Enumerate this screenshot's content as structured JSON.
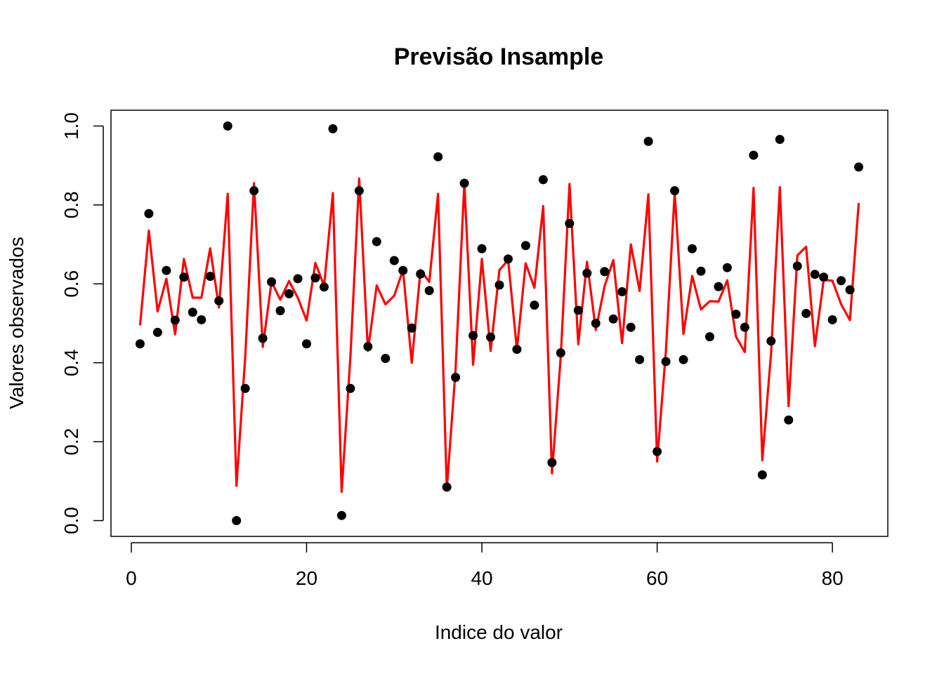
{
  "chart_data": {
    "type": "scatter",
    "title": "Previsão Insample",
    "xlabel": "Indice do valor",
    "ylabel": "Valores observados",
    "xlim": [
      -2.32,
      86.32
    ],
    "ylim": [
      -0.04,
      1.04
    ],
    "xticks": [
      0,
      20,
      40,
      60,
      80
    ],
    "xtick_labels": [
      "0",
      "20",
      "40",
      "60",
      "80"
    ],
    "yticks": [
      0,
      0.2,
      0.4,
      0.6,
      0.8,
      1.0
    ],
    "ytick_labels": [
      "0.0",
      "0.2",
      "0.4",
      "0.6",
      "0.8",
      "1.0"
    ],
    "grid": false,
    "x": [
      1,
      2,
      3,
      4,
      5,
      6,
      7,
      8,
      9,
      10,
      11,
      12,
      13,
      14,
      15,
      16,
      17,
      18,
      19,
      20,
      21,
      22,
      23,
      24,
      25,
      26,
      27,
      28,
      29,
      30,
      31,
      32,
      33,
      34,
      35,
      36,
      37,
      38,
      39,
      40,
      41,
      42,
      43,
      44,
      45,
      46,
      47,
      48,
      49,
      50,
      51,
      52,
      53,
      54,
      55,
      56,
      57,
      58,
      59,
      60,
      61,
      62,
      63,
      64,
      65,
      66,
      67,
      68,
      69,
      70,
      71,
      72,
      73,
      74,
      75,
      76,
      77,
      78,
      79,
      80,
      81,
      82,
      83
    ],
    "series": [
      {
        "type": "scatter",
        "color": "#000000",
        "values": [
          0.448,
          0.778,
          0.477,
          0.634,
          0.508,
          0.617,
          0.528,
          0.509,
          0.619,
          0.557,
          1.0,
          0.0,
          0.335,
          0.836,
          0.462,
          0.605,
          0.532,
          0.575,
          0.613,
          0.448,
          0.615,
          0.592,
          0.993,
          0.013,
          0.335,
          0.836,
          0.441,
          0.707,
          0.411,
          0.659,
          0.634,
          0.488,
          0.625,
          0.583,
          0.922,
          0.085,
          0.363,
          0.855,
          0.469,
          0.689,
          0.465,
          0.597,
          0.663,
          0.434,
          0.697,
          0.546,
          0.864,
          0.147,
          0.425,
          0.753,
          0.533,
          0.627,
          0.5,
          0.631,
          0.511,
          0.58,
          0.49,
          0.408,
          0.961,
          0.175,
          0.403,
          0.836,
          0.408,
          0.689,
          0.632,
          0.466,
          0.593,
          0.641,
          0.523,
          0.49,
          0.926,
          0.116,
          0.455,
          0.966,
          0.255,
          0.645,
          0.525,
          0.624,
          0.617,
          0.509,
          0.608,
          0.585,
          0.896
        ]
      },
      {
        "type": "line",
        "color": "#ff0000",
        "values": [
          0.495,
          0.735,
          0.53,
          0.613,
          0.472,
          0.663,
          0.565,
          0.565,
          0.69,
          0.54,
          0.828,
          0.088,
          0.415,
          0.855,
          0.44,
          0.605,
          0.56,
          0.607,
          0.565,
          0.507,
          0.653,
          0.595,
          0.83,
          0.073,
          0.415,
          0.867,
          0.43,
          0.596,
          0.548,
          0.57,
          0.635,
          0.4,
          0.635,
          0.605,
          0.828,
          0.08,
          0.383,
          0.855,
          0.395,
          0.663,
          0.43,
          0.635,
          0.66,
          0.433,
          0.652,
          0.59,
          0.797,
          0.12,
          0.415,
          0.853,
          0.447,
          0.656,
          0.483,
          0.594,
          0.66,
          0.45,
          0.7,
          0.582,
          0.827,
          0.15,
          0.43,
          0.832,
          0.473,
          0.62,
          0.535,
          0.556,
          0.555,
          0.609,
          0.466,
          0.427,
          0.843,
          0.153,
          0.424,
          0.845,
          0.29,
          0.672,
          0.694,
          0.442,
          0.61,
          0.608,
          0.548,
          0.508,
          0.805
        ]
      }
    ]
  }
}
